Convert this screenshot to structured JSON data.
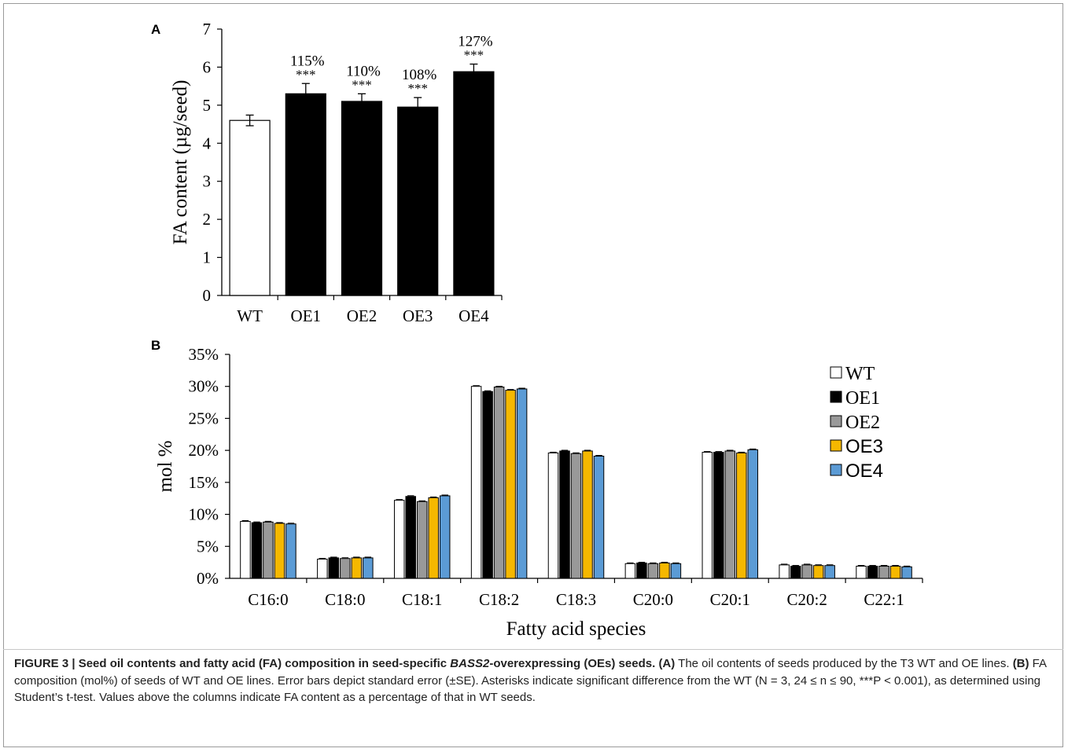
{
  "chart_data": [
    {
      "panel": "A",
      "type": "bar",
      "categories": [
        "WT",
        "OE1",
        "OE2",
        "OE3",
        "OE4"
      ],
      "values": [
        4.6,
        5.3,
        5.1,
        4.95,
        5.88
      ],
      "errors": [
        0.14,
        0.27,
        0.2,
        0.25,
        0.2
      ],
      "colors": [
        "#ffffff",
        "#000000",
        "#000000",
        "#000000",
        "#000000"
      ],
      "percent_labels": [
        "",
        "115%",
        "110%",
        "108%",
        "127%"
      ],
      "significance": [
        "",
        "***",
        "***",
        "***",
        "***"
      ],
      "ylabel": "FA content (µg/seed)",
      "xlabel": "",
      "ylim": [
        0,
        7
      ],
      "yticks": [
        "0",
        "1",
        "2",
        "3",
        "4",
        "5",
        "6",
        "7"
      ],
      "grid": false
    },
    {
      "panel": "B",
      "type": "bar",
      "categories": [
        "C16:0",
        "C18:0",
        "C18:1",
        "C18:2",
        "C18:3",
        "C20:0",
        "C20:1",
        "C20:2",
        "C22:1"
      ],
      "series": [
        {
          "name": "WT",
          "color": "#ffffff",
          "values": [
            8.9,
            3.0,
            12.2,
            30.0,
            19.6,
            2.3,
            19.7,
            2.1,
            1.9
          ]
        },
        {
          "name": "OE1",
          "color": "#000000",
          "values": [
            8.7,
            3.2,
            12.8,
            29.2,
            19.9,
            2.4,
            19.7,
            1.9,
            1.9
          ]
        },
        {
          "name": "OE2",
          "color": "#999999",
          "values": [
            8.8,
            3.1,
            12.0,
            29.9,
            19.5,
            2.3,
            19.9,
            2.1,
            1.9
          ]
        },
        {
          "name": "OE3",
          "color": "#f5b800",
          "values": [
            8.6,
            3.2,
            12.6,
            29.4,
            19.9,
            2.4,
            19.6,
            2.0,
            1.9
          ]
        },
        {
          "name": "OE4",
          "color": "#5b9bd5",
          "values": [
            8.5,
            3.2,
            12.9,
            29.6,
            19.1,
            2.3,
            20.1,
            2.0,
            1.8
          ]
        }
      ],
      "ylabel": "mol %",
      "xlabel": "Fatty acid species",
      "ylim": [
        0,
        35
      ],
      "yticks": [
        "0%",
        "5%",
        "10%",
        "15%",
        "20%",
        "25%",
        "30%",
        "35%"
      ],
      "legend": "top-right",
      "grid": false
    }
  ],
  "panels": {
    "a": "A",
    "b": "B"
  },
  "caption": {
    "figure_label": "FIGURE 3 | Seed oil contents and fatty acid (FA) composition in seed-specific ",
    "gene": "BASS2",
    "title_rest": "-overexpressing (OEs) seeds.",
    "a_label": "(A)",
    "a_text": " The oil contents of seeds produced by the T3 WT and OE lines. ",
    "b_label": "(B)",
    "b_text": " FA composition (mol%) of seeds of WT and OE lines. Error bars depict standard error (±SE). Asterisks indicate significant difference from the WT (N = 3, 24 ≤ n ≤ 90, ***P < 0.001), as determined using Student’s t-test. Values above the columns indicate FA content as a percentage of that in WT seeds."
  }
}
